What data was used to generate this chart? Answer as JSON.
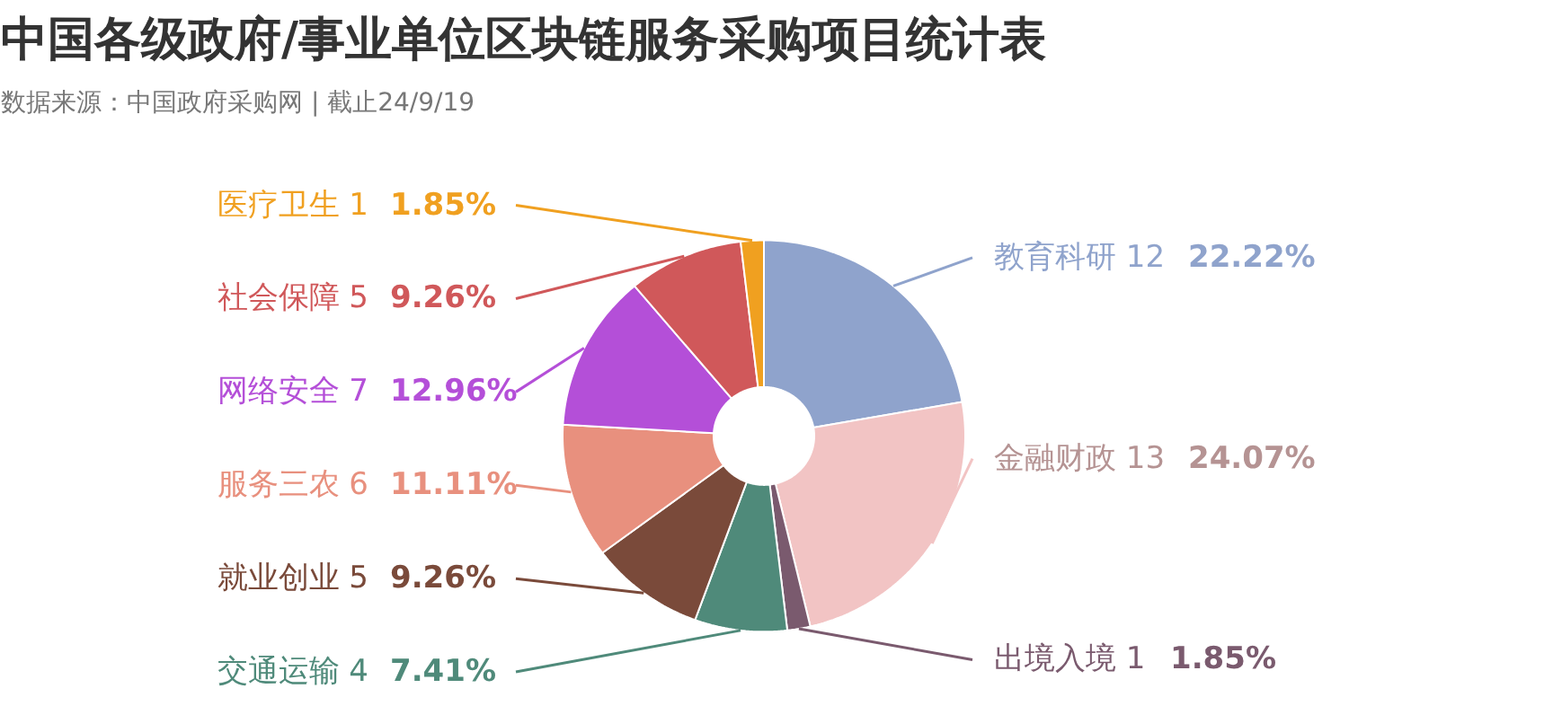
{
  "chart_data": {
    "type": "donut",
    "title": "中国各级政府/事业单位区块链服务采购项目统计表",
    "subtitle": "数据来源：中国政府采购网 | 截止24/9/19",
    "categories": [
      "教育科研 12",
      "金融财政 13",
      "出境入境 1",
      "交通运输 4",
      "就业创业 5",
      "服务三农 6",
      "网络安全 7",
      "社会保障 5",
      "医疗卫生 1"
    ],
    "values": [
      22.22,
      24.07,
      1.85,
      7.41,
      9.26,
      11.11,
      12.96,
      9.26,
      1.85
    ],
    "value_labels": [
      "22.22%",
      "24.07%",
      "1.85%",
      "7.41%",
      "9.26%",
      "11.11%",
      "12.96%",
      "9.26%",
      "1.85%"
    ],
    "colors": [
      "#8fa3cc",
      "#f2c4c4",
      "#7a5a6e",
      "#4f8a7a",
      "#7a4a3a",
      "#e8907e",
      "#b44fd8",
      "#d0585a",
      "#f0a020"
    ],
    "data_labels": true
  }
}
